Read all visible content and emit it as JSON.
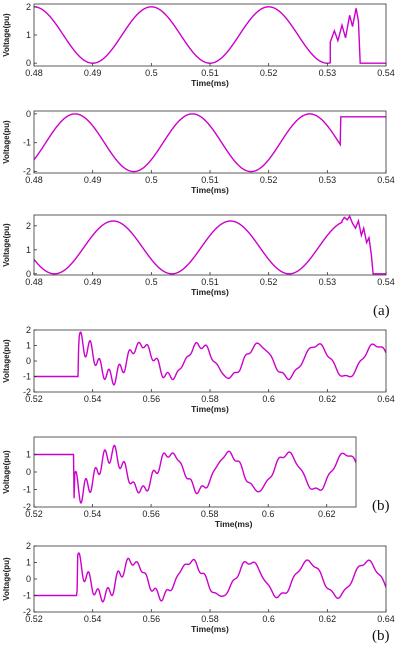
{
  "captions": [
    "(a)",
    "(b)",
    "(b)"
  ],
  "line_color": "#CC00CC",
  "chart_data": [
    {
      "type": "line",
      "group": "a",
      "panel": 1,
      "xlabel": "Time(ms)",
      "ylabel": "Voltage(pu)",
      "xlim": [
        0.48,
        0.54
      ],
      "ylim": [
        -0.1,
        2.1
      ],
      "xticks": [
        0.48,
        0.49,
        0.5,
        0.51,
        0.52,
        0.53,
        0.54
      ],
      "xtick_labels": [
        "0.48",
        "0.49",
        "0.5",
        "0.51",
        "0.52",
        "0.53",
        "0.54"
      ],
      "yticks": [
        0,
        1,
        2
      ],
      "ytick_labels": [
        "0",
        "1",
        "2"
      ],
      "wave": {
        "offset": 1,
        "amp": 1,
        "period": 0.02,
        "peak_at": 0.5,
        "t_end": 0.5305
      },
      "tail": [
        [
          0.5305,
          0.75
        ],
        [
          0.5312,
          1.15
        ],
        [
          0.5318,
          0.8
        ],
        [
          0.5325,
          1.35
        ],
        [
          0.5331,
          0.9
        ],
        [
          0.5338,
          1.7
        ],
        [
          0.5343,
          1.3
        ],
        [
          0.5349,
          1.95
        ],
        [
          0.5353,
          1.5
        ],
        [
          0.5356,
          0.0
        ],
        [
          0.54,
          0.0
        ]
      ]
    },
    {
      "type": "line",
      "group": "a",
      "panel": 2,
      "xlabel": "Time(ms)",
      "ylabel": "Voltage(pu)",
      "xlim": [
        0.48,
        0.54
      ],
      "ylim": [
        -2.05,
        0.1
      ],
      "xticks": [
        0.48,
        0.49,
        0.5,
        0.51,
        0.52,
        0.53,
        0.54
      ],
      "xtick_labels": [
        "0.48",
        "0.49",
        "0.5",
        "0.51",
        "0.52",
        "0.53",
        "0.54"
      ],
      "yticks": [
        -2,
        -1,
        0
      ],
      "ytick_labels": [
        "-2",
        "-1",
        "0"
      ],
      "wave": {
        "offset": -1,
        "amp": 1,
        "period": 0.02,
        "peak_at": 0.487,
        "t_end": 0.5322
      },
      "tail": [
        [
          0.5322,
          -0.95
        ],
        [
          0.5323,
          -0.1
        ],
        [
          0.54,
          -0.1
        ]
      ]
    },
    {
      "type": "line",
      "group": "a",
      "panel": 3,
      "xlabel": "Time(ms)",
      "ylabel": "Voltage(pu)",
      "xlim": [
        0.48,
        0.54
      ],
      "ylim": [
        -0.05,
        2.45
      ],
      "xticks": [
        0.48,
        0.49,
        0.5,
        0.51,
        0.52,
        0.53,
        0.54
      ],
      "xtick_labels": [
        "0.48",
        "0.49",
        "0.5",
        "0.51",
        "0.52",
        "0.53",
        "0.54"
      ],
      "yticks": [
        0,
        1,
        2
      ],
      "ytick_labels": [
        "0",
        "1",
        "2"
      ],
      "wave": {
        "offset": 1.1,
        "amp": 1.1,
        "period": 0.02,
        "peak_at": 0.4935,
        "t_end": 0.5325
      },
      "tail": [
        [
          0.5325,
          2.2
        ],
        [
          0.5329,
          2.35
        ],
        [
          0.5334,
          2.25
        ],
        [
          0.5338,
          2.4
        ],
        [
          0.5343,
          2.1
        ],
        [
          0.5348,
          1.9
        ],
        [
          0.5353,
          2.2
        ],
        [
          0.5358,
          1.6
        ],
        [
          0.5362,
          1.9
        ],
        [
          0.5367,
          1.3
        ],
        [
          0.5371,
          1.5
        ],
        [
          0.5375,
          0.8
        ],
        [
          0.5378,
          0.0
        ],
        [
          0.54,
          0.0
        ]
      ]
    },
    {
      "type": "line",
      "group": "b",
      "panel": 1,
      "xlabel": "Time(ms)",
      "ylabel": "Voltage(pu)",
      "xlim": [
        0.52,
        0.64
      ],
      "ylim": [
        -2,
        2
      ],
      "xticks": [
        0.52,
        0.54,
        0.56,
        0.58,
        0.6,
        0.62,
        0.64
      ],
      "xtick_labels": [
        "0.52",
        "0.54",
        "0.56",
        "0.58",
        "0.6",
        "0.62",
        "0.64"
      ],
      "yticks": [
        -2,
        -1,
        0,
        1,
        2
      ],
      "ytick_labels": [
        "-2",
        "-1",
        "0",
        "1",
        "2"
      ],
      "pre": -1,
      "t0": 0.535,
      "step_to": 0.8,
      "fundamental": {
        "amp": 1.05,
        "period": 0.02,
        "peak_at": 0.5365
      },
      "ripple": {
        "amp": 0.75,
        "period": 0.0033,
        "decay": 0.022,
        "end": 0.61
      }
    },
    {
      "type": "line",
      "group": "b",
      "panel": 2,
      "xlabel": "Time(ms)",
      "ylabel": "Voltage(pu)",
      "xlim": [
        0.52,
        0.63
      ],
      "ylim": [
        -2,
        2
      ],
      "xticks": [
        0.52,
        0.54,
        0.56,
        0.58,
        0.6,
        0.62
      ],
      "xtick_labels": [
        "0.52",
        "0.54",
        "0.56",
        "0.58",
        "0.6",
        "0.62"
      ],
      "yticks": [
        -2,
        -1,
        0,
        1
      ],
      "ytick_labels": [
        "-2",
        "-1",
        "0",
        "1"
      ],
      "pre": 1,
      "t0": 0.5335,
      "step_to": -1.5,
      "fundamental": {
        "amp": 1.05,
        "period": 0.02,
        "peak_at": 0.5465
      },
      "ripple": {
        "amp": 0.75,
        "period": 0.0033,
        "decay": 0.022,
        "end": 0.61
      }
    },
    {
      "type": "line",
      "group": "b",
      "panel": 3,
      "xlabel": "Time(ms)",
      "ylabel": "Voltage(pu)",
      "xlim": [
        0.52,
        0.64
      ],
      "ylim": [
        -2,
        2
      ],
      "xticks": [
        0.52,
        0.54,
        0.56,
        0.58,
        0.6,
        0.62,
        0.64
      ],
      "xtick_labels": [
        "0.52",
        "0.54",
        "0.56",
        "0.58",
        "0.6",
        "0.62",
        "0.64"
      ],
      "yticks": [
        -2,
        -1,
        0,
        1,
        2
      ],
      "ytick_labels": [
        "-2",
        "-1",
        "0",
        "1",
        "2"
      ],
      "pre": -1,
      "t0": 0.5345,
      "step_to": -0.7,
      "fundamental": {
        "amp": 1.05,
        "period": 0.02,
        "peak_at": 0.5535
      },
      "ripple": {
        "amp": 0.6,
        "period": 0.0033,
        "decay": 0.022,
        "end": 0.61
      }
    }
  ]
}
